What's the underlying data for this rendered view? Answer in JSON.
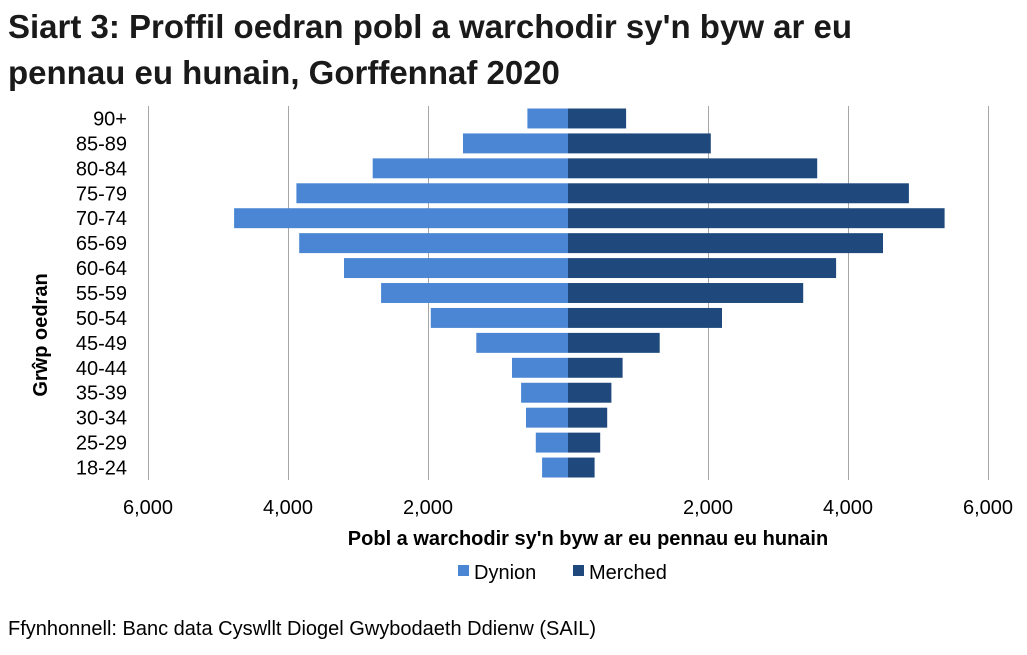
{
  "title_line1": "Siart 3: Proffil oedran pobl a warchodir sy'n byw ar eu",
  "title_line2": "pennau eu hunain, Gorffennaf 2020",
  "source": "Ffynhonnell: Banc data Cyswllt Diogel Gwybodaeth Ddienw (SAIL)",
  "colors": {
    "dynion": "#4a86d4",
    "merched": "#1f497d",
    "grid": "#a6a6a6"
  },
  "chart_data": {
    "type": "bar",
    "orientation": "horizontal",
    "layout": "population-pyramid",
    "categories": [
      "90+",
      "85-89",
      "80-84",
      "75-79",
      "70-74",
      "65-69",
      "60-64",
      "55-59",
      "50-54",
      "45-49",
      "40-44",
      "35-39",
      "30-34",
      "25-29",
      "18-24"
    ],
    "series": [
      {
        "name": "Dynion",
        "values": [
          580,
          1500,
          2790,
          3880,
          4770,
          3840,
          3200,
          2670,
          1960,
          1310,
          800,
          670,
          600,
          460,
          370
        ]
      },
      {
        "name": "Merched",
        "values": [
          830,
          2040,
          3560,
          4870,
          5380,
          4500,
          3830,
          3360,
          2200,
          1310,
          780,
          620,
          560,
          460,
          380
        ]
      }
    ],
    "xlabel": "Pobl a warchodir sy'n byw ar eu pennau eu hunain",
    "ylabel": "Grŵp oedran",
    "xlim": [
      -6000,
      6000
    ],
    "xticks": [
      -6000,
      -4000,
      -2000,
      2000,
      4000,
      6000
    ],
    "xtick_labels": [
      "6,000",
      "4,000",
      "2,000",
      "2,000",
      "4,000",
      "6,000"
    ],
    "legend": [
      "Dynion",
      "Merched"
    ],
    "legend_position": "bottom",
    "grid": true
  }
}
